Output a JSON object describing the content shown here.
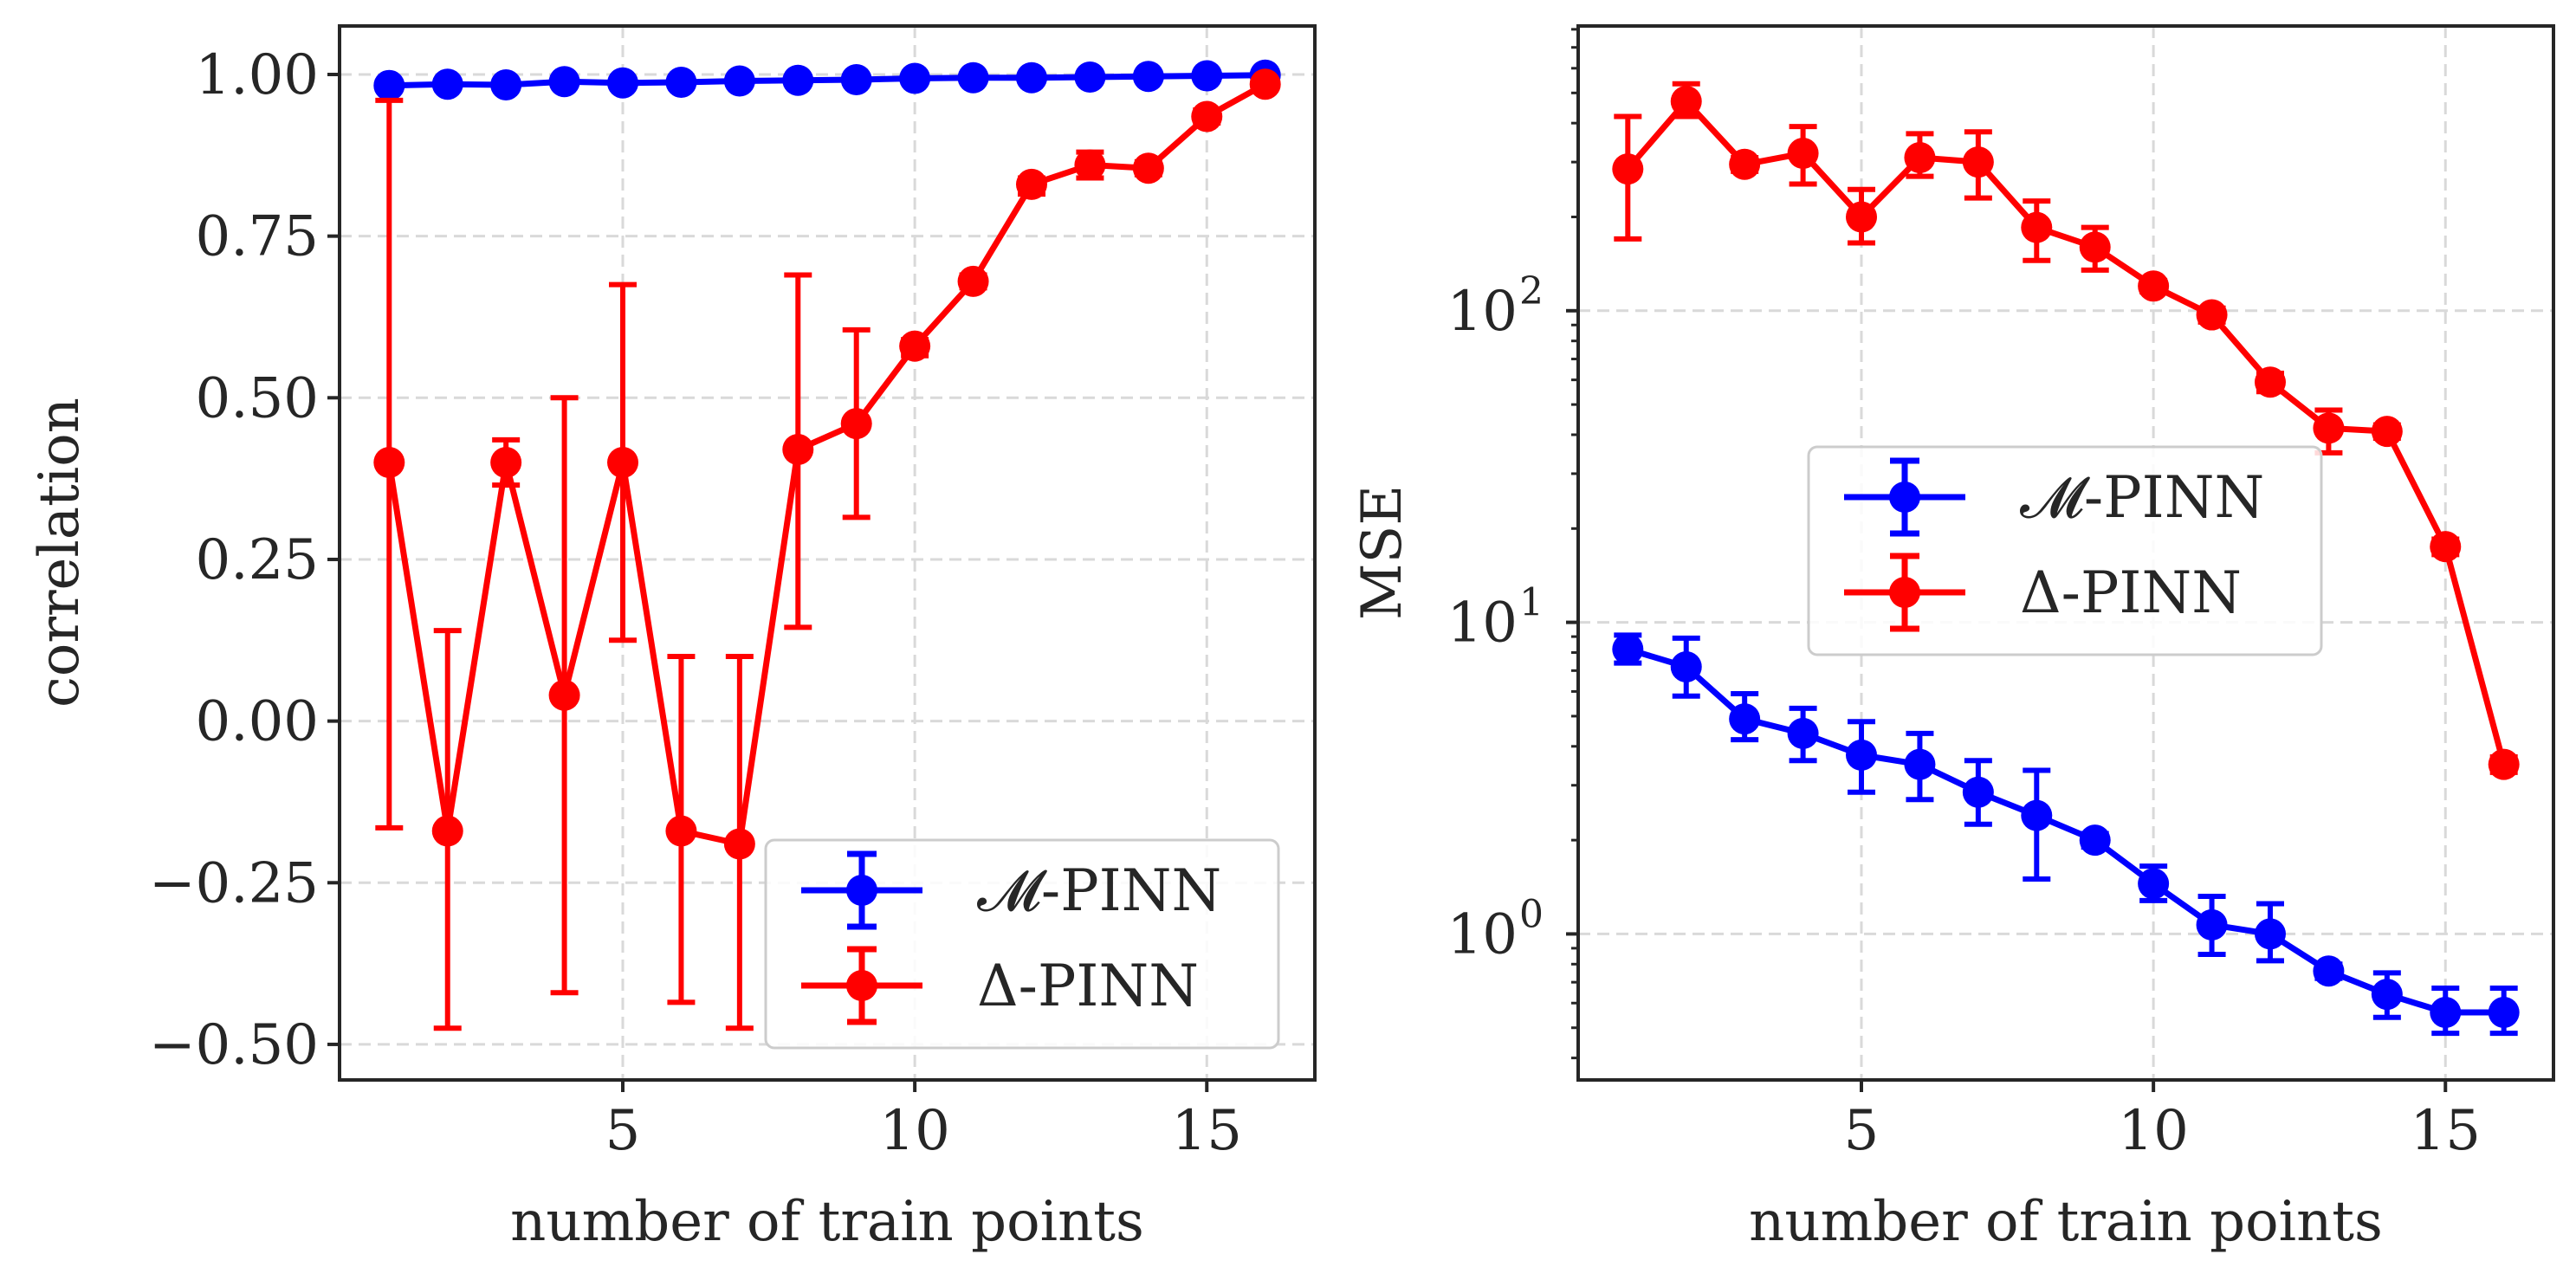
{
  "chart_data": [
    {
      "type": "line",
      "title": "",
      "xlabel": "number of train points",
      "ylabel": "correlation",
      "xlim": [
        0.15,
        16.85
      ],
      "ylim": [
        -0.555,
        1.075
      ],
      "yscale": "linear",
      "xticks": [
        5,
        10,
        15
      ],
      "xtick_labels": [
        "5",
        "10",
        "15"
      ],
      "yticks": [
        1.0,
        0.75,
        0.5,
        0.25,
        0.0,
        -0.25,
        -0.5
      ],
      "ytick_labels": [
        "1.00",
        "0.75",
        "0.50",
        "0.25",
        "0.00",
        "−0.25",
        "−0.50"
      ],
      "grid": true,
      "legend_position": "lower-right",
      "x": [
        1,
        2,
        3,
        4,
        5,
        6,
        7,
        8,
        9,
        10,
        11,
        12,
        13,
        14,
        15,
        16
      ],
      "series": [
        {
          "name": "𝓜-PINN",
          "color": "#0000ff",
          "values": [
            0.983,
            0.985,
            0.984,
            0.989,
            0.987,
            0.988,
            0.99,
            0.991,
            0.992,
            0.994,
            0.995,
            0.995,
            0.996,
            0.997,
            0.998,
            0.999
          ],
          "err_low": [
            0.976,
            0.98,
            0.979,
            0.985,
            0.983,
            0.984,
            0.987,
            0.988,
            0.989,
            0.991,
            0.993,
            0.993,
            0.994,
            0.995,
            0.997,
            0.998
          ],
          "err_high": [
            0.99,
            0.99,
            0.989,
            0.993,
            0.991,
            0.992,
            0.993,
            0.994,
            0.995,
            0.997,
            0.997,
            0.997,
            0.998,
            0.999,
            0.999,
            1.0
          ]
        },
        {
          "name": "Δ-PINN",
          "color": "#ff0000",
          "values": [
            0.4,
            -0.17,
            0.4,
            0.04,
            0.4,
            -0.17,
            -0.19,
            0.42,
            0.46,
            0.58,
            0.68,
            0.83,
            0.86,
            0.855,
            0.935,
            0.985
          ],
          "err_low": [
            -0.165,
            -0.475,
            0.365,
            -0.42,
            0.125,
            -0.435,
            -0.475,
            0.145,
            0.315,
            0.565,
            0.67,
            0.815,
            0.84,
            0.845,
            0.925,
            0.98
          ],
          "err_high": [
            0.96,
            0.14,
            0.435,
            0.5,
            0.675,
            0.1,
            0.1,
            0.69,
            0.605,
            0.59,
            0.69,
            0.84,
            0.88,
            0.865,
            0.945,
            0.99
          ]
        }
      ]
    },
    {
      "type": "line",
      "title": "",
      "xlabel": "number of train points",
      "ylabel": "MSE",
      "xlim": [
        0.15,
        16.85
      ],
      "ylim": [
        0.34,
        820
      ],
      "yscale": "log",
      "xticks": [
        5,
        10,
        15
      ],
      "xtick_labels": [
        "5",
        "10",
        "15"
      ],
      "yticks": [
        1,
        10,
        100
      ],
      "ytick_labels": [
        {
          "base": "10",
          "exp": "0"
        },
        {
          "base": "10",
          "exp": "1"
        },
        {
          "base": "10",
          "exp": "2"
        }
      ],
      "grid": true,
      "legend_position": "center",
      "x": [
        1,
        2,
        3,
        4,
        5,
        6,
        7,
        8,
        9,
        10,
        11,
        12,
        13,
        14,
        15,
        16
      ],
      "series": [
        {
          "name": "𝓜-PINN",
          "color": "#0000ff",
          "values": [
            8.2,
            7.2,
            4.9,
            4.4,
            3.75,
            3.5,
            2.85,
            2.4,
            2.0,
            1.45,
            1.07,
            1.0,
            0.76,
            0.64,
            0.56,
            0.56
          ],
          "err_low": [
            7.4,
            5.8,
            4.2,
            3.6,
            2.85,
            2.7,
            2.25,
            1.5,
            1.9,
            1.28,
            0.86,
            0.82,
            0.72,
            0.54,
            0.48,
            0.48
          ],
          "err_high": [
            9.1,
            8.9,
            5.9,
            5.3,
            4.8,
            4.4,
            3.6,
            3.35,
            2.1,
            1.65,
            1.32,
            1.25,
            0.8,
            0.75,
            0.67,
            0.67
          ]
        },
        {
          "name": "Δ-PINN",
          "color": "#ff0000",
          "values": [
            285,
            470,
            295,
            320,
            200,
            310,
            300,
            185,
            160,
            120,
            97,
            59,
            42,
            41,
            17.5,
            3.5
          ],
          "err_low": [
            170,
            420,
            280,
            255,
            165,
            270,
            230,
            145,
            135,
            115,
            92,
            55,
            35,
            39,
            16.5,
            3.3
          ],
          "err_high": [
            420,
            535,
            310,
            390,
            245,
            370,
            375,
            225,
            185,
            125,
            102,
            63,
            48,
            43,
            18.5,
            3.7
          ]
        }
      ]
    }
  ]
}
